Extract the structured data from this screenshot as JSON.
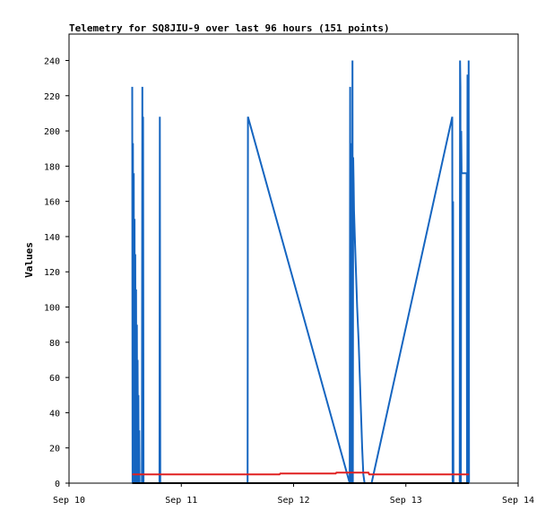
{
  "chart_data": {
    "type": "line",
    "title": "Telemetry for SQ8JIU-9 over last 96 hours (151 points)",
    "xlabel": "",
    "ylabel": "Values",
    "xlim": [
      "Sep 10",
      "Sep 14"
    ],
    "x_ticks": [
      "Sep 10",
      "Sep 11",
      "Sep 12",
      "Sep 13",
      "Sep 14"
    ],
    "ylim": [
      0,
      255
    ],
    "y_ticks": [
      "0",
      "20",
      "40",
      "60",
      "80",
      "100",
      "120",
      "140",
      "160",
      "180",
      "200",
      "220",
      "240"
    ],
    "grid": false,
    "legend": "none",
    "series": [
      {
        "color": "#1565c0",
        "points": [
          [
            "Sep 10 13:30",
            225
          ],
          [
            "Sep 10 13:35",
            0
          ],
          [
            "Sep 10 13:40",
            193
          ],
          [
            "Sep 10 13:45",
            0
          ],
          [
            "Sep 10 13:50",
            176
          ],
          [
            "Sep 10 13:55",
            0
          ],
          [
            "Sep 10 14:00",
            150
          ],
          [
            "Sep 10 14:05",
            0
          ],
          [
            "Sep 10 14:10",
            130
          ],
          [
            "Sep 10 14:15",
            0
          ],
          [
            "Sep 10 14:20",
            110
          ],
          [
            "Sep 10 14:25",
            0
          ],
          [
            "Sep 10 14:30",
            90
          ],
          [
            "Sep 10 14:35",
            0
          ],
          [
            "Sep 10 14:40",
            70
          ],
          [
            "Sep 10 14:45",
            0
          ],
          [
            "Sep 10 14:50",
            50
          ],
          [
            "Sep 10 14:55",
            0
          ],
          [
            "Sep 10 15:00",
            30
          ],
          [
            "Sep 10 15:05",
            0
          ],
          [
            "Sep 10 15:35",
            0
          ],
          [
            "Sep 10 15:40",
            225
          ],
          [
            "Sep 10 15:45",
            0
          ],
          [
            "Sep 10 15:50",
            208
          ],
          [
            "Sep 10 15:55",
            0
          ],
          [
            "Sep 10 19:20",
            0
          ],
          [
            "Sep 10 19:25",
            208
          ],
          [
            "Sep 10 19:30",
            0
          ],
          [
            "Sep 11 14:10",
            0
          ],
          [
            "Sep 11 14:15",
            208
          ],
          [
            "Sep 12 12:00",
            0
          ],
          [
            "Sep 12 12:05",
            225
          ],
          [
            "Sep 12 12:10",
            0
          ],
          [
            "Sep 12 12:15",
            193
          ],
          [
            "Sep 12 12:20",
            0
          ],
          [
            "Sep 12 12:30",
            0
          ],
          [
            "Sep 12 12:35",
            240
          ],
          [
            "Sep 12 12:40",
            0
          ],
          [
            "Sep 12 12:45",
            185
          ],
          [
            "Sep 12 12:50",
            170
          ],
          [
            "Sep 12 12:55",
            155
          ],
          [
            "Sep 12 13:05",
            140
          ],
          [
            "Sep 12 13:20",
            120
          ],
          [
            "Sep 12 13:35",
            100
          ],
          [
            "Sep 12 13:55",
            80
          ],
          [
            "Sep 12 14:10",
            60
          ],
          [
            "Sep 12 14:25",
            40
          ],
          [
            "Sep 12 14:40",
            20
          ],
          [
            "Sep 12 14:55",
            5
          ],
          [
            "Sep 12 15:10",
            0
          ],
          [
            "Sep 12 16:40",
            0
          ],
          [
            "Sep 13 09:55",
            208
          ],
          [
            "Sep 13 10:00",
            0
          ],
          [
            "Sep 13 10:05",
            160
          ],
          [
            "Sep 13 10:10",
            0
          ],
          [
            "Sep 13 11:30",
            0
          ],
          [
            "Sep 13 11:35",
            240
          ],
          [
            "Sep 13 11:40",
            225
          ],
          [
            "Sep 13 11:45",
            0
          ],
          [
            "Sep 13 11:50",
            200
          ],
          [
            "Sep 13 11:55",
            176
          ],
          [
            "Sep 13 13:00",
            176
          ],
          [
            "Sep 13 13:05",
            0
          ],
          [
            "Sep 13 13:10",
            232
          ],
          [
            "Sep 13 13:15",
            185
          ],
          [
            "Sep 13 13:20",
            0
          ],
          [
            "Sep 13 13:25",
            240
          ],
          [
            "Sep 13 13:30",
            0
          ]
        ]
      },
      {
        "color": "#e02020",
        "points": [
          [
            "Sep 10 13:30",
            5
          ],
          [
            "Sep 11 21:00",
            5
          ],
          [
            "Sep 11 21:10",
            5.5
          ],
          [
            "Sep 12 09:00",
            5.5
          ],
          [
            "Sep 12 09:10",
            6
          ],
          [
            "Sep 12 16:00",
            6
          ],
          [
            "Sep 12 16:10",
            5
          ],
          [
            "Sep 13 13:30",
            5
          ]
        ]
      },
      {
        "color": "#000000",
        "points": [
          [
            "Sep 10 13:30",
            0
          ],
          [
            "Sep 13 13:30",
            0
          ]
        ]
      }
    ]
  }
}
